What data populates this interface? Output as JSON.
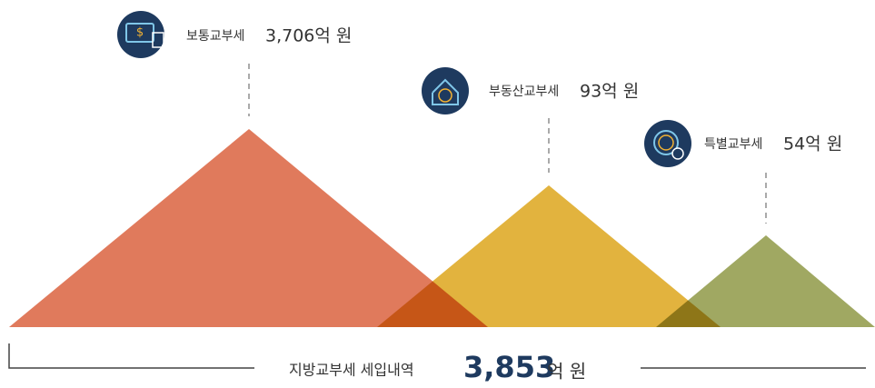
{
  "items": [
    {
      "name": "보통교부세",
      "amount": "3,706억 원"
    },
    {
      "name": "부동산교부세",
      "amount": "93억 원"
    },
    {
      "name": "특별교부세",
      "amount": "54억 원"
    }
  ],
  "total": {
    "label": "지방교부세 세입내역",
    "amount": "3,853",
    "unit": "억 원"
  }
}
